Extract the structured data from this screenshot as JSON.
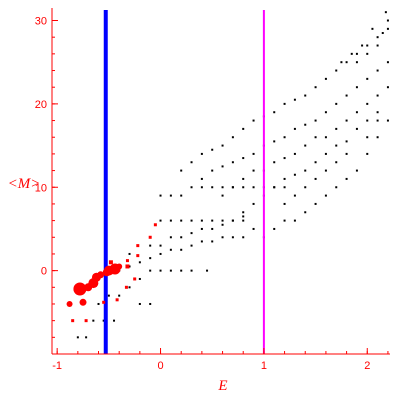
{
  "chart_data": {
    "type": "scatter",
    "title": "",
    "xlabel": "E",
    "ylabel": "<M>",
    "xlim": [
      -1.05,
      2.22
    ],
    "ylim": [
      -10,
      31.5
    ],
    "x_ticks": [
      -1,
      0,
      1,
      2
    ],
    "y_ticks": [
      0,
      10,
      20,
      30
    ],
    "grid": false,
    "colors": {
      "axis": "#ff0000",
      "black_points": "#000000",
      "red_points": "#ff0000",
      "blue_line": "#0000ff",
      "magenta_line": "#ff00ff"
    },
    "vertical_lines": [
      {
        "x": -0.53,
        "color": "#0000ff",
        "weight": "thick"
      },
      {
        "x": 1.0,
        "color": "#ff00ff",
        "weight": "thin"
      }
    ],
    "series": [
      {
        "color": "#000000",
        "marker": "dot",
        "points": [
          [
            -0.8,
            -8
          ],
          [
            -0.72,
            -8
          ],
          [
            -0.65,
            -6
          ],
          [
            -0.55,
            -6
          ],
          [
            -0.45,
            -6
          ],
          [
            -0.2,
            -4
          ],
          [
            -0.1,
            -4
          ],
          [
            -0.6,
            -4
          ],
          [
            -0.5,
            -3
          ],
          [
            -0.4,
            -3
          ],
          [
            -0.3,
            -2
          ],
          [
            -0.2,
            -1
          ],
          [
            -0.1,
            0
          ],
          [
            0.0,
            0
          ],
          [
            0.1,
            0
          ],
          [
            0.2,
            0
          ],
          [
            0.3,
            0
          ],
          [
            0.45,
            0
          ],
          [
            -0.4,
            0
          ],
          [
            -0.3,
            0.5
          ],
          [
            -0.2,
            1
          ],
          [
            -0.1,
            1.5
          ],
          [
            0.0,
            2
          ],
          [
            0.1,
            2.5
          ],
          [
            0.2,
            2.5
          ],
          [
            0.3,
            3
          ],
          [
            0.4,
            3.5
          ],
          [
            0.5,
            3.5
          ],
          [
            0.6,
            4
          ],
          [
            0.7,
            4
          ],
          [
            0.8,
            4
          ],
          [
            -0.3,
            2
          ],
          [
            -0.1,
            3
          ],
          [
            0.0,
            3
          ],
          [
            0.1,
            4
          ],
          [
            0.2,
            4
          ],
          [
            0.3,
            4.5
          ],
          [
            0.4,
            5
          ],
          [
            0.5,
            5
          ],
          [
            0.6,
            5.5
          ],
          [
            0.7,
            6
          ],
          [
            0.8,
            6.5
          ],
          [
            0.9,
            5
          ],
          [
            0.0,
            6
          ],
          [
            0.1,
            6
          ],
          [
            0.2,
            6
          ],
          [
            0.3,
            6
          ],
          [
            0.4,
            6
          ],
          [
            0.5,
            6
          ],
          [
            0.6,
            6
          ],
          [
            0.7,
            6
          ],
          [
            0.8,
            6
          ],
          [
            0.0,
            9
          ],
          [
            0.1,
            9
          ],
          [
            0.2,
            9
          ],
          [
            0.3,
            10
          ],
          [
            0.4,
            10
          ],
          [
            0.5,
            10
          ],
          [
            0.6,
            10
          ],
          [
            0.7,
            10
          ],
          [
            0.8,
            10
          ],
          [
            0.9,
            10
          ],
          [
            1.0,
            10
          ],
          [
            1.1,
            10
          ],
          [
            1.2,
            10
          ],
          [
            0.2,
            12
          ],
          [
            0.3,
            13
          ],
          [
            0.4,
            14
          ],
          [
            0.5,
            14.5
          ],
          [
            0.6,
            15
          ],
          [
            0.7,
            16
          ],
          [
            0.8,
            17
          ],
          [
            0.9,
            18
          ],
          [
            1.0,
            18.5
          ],
          [
            1.1,
            19
          ],
          [
            1.2,
            20
          ],
          [
            1.3,
            20.5
          ],
          [
            1.4,
            21
          ],
          [
            1.5,
            22
          ],
          [
            1.6,
            23
          ],
          [
            1.7,
            24
          ],
          [
            1.8,
            25
          ],
          [
            1.9,
            26
          ],
          [
            2.0,
            27
          ],
          [
            2.1,
            28
          ],
          [
            2.2,
            29
          ],
          [
            0.4,
            11
          ],
          [
            0.5,
            12
          ],
          [
            0.6,
            12.5
          ],
          [
            0.7,
            13
          ],
          [
            0.8,
            13.5
          ],
          [
            0.9,
            14
          ],
          [
            1.0,
            15
          ],
          [
            1.1,
            15.5
          ],
          [
            1.2,
            16
          ],
          [
            1.3,
            17
          ],
          [
            1.4,
            17.5
          ],
          [
            1.5,
            18
          ],
          [
            1.6,
            19
          ],
          [
            1.7,
            20
          ],
          [
            1.8,
            21
          ],
          [
            1.9,
            22
          ],
          [
            2.0,
            23
          ],
          [
            2.1,
            24
          ],
          [
            2.2,
            25
          ],
          [
            0.6,
            9
          ],
          [
            0.7,
            10
          ],
          [
            0.8,
            11
          ],
          [
            0.9,
            12
          ],
          [
            1.0,
            12
          ],
          [
            1.1,
            13
          ],
          [
            1.2,
            13.5
          ],
          [
            1.3,
            14
          ],
          [
            1.4,
            15
          ],
          [
            1.5,
            16
          ],
          [
            1.6,
            16
          ],
          [
            1.7,
            17
          ],
          [
            1.8,
            18
          ],
          [
            1.9,
            19
          ],
          [
            2.0,
            20
          ],
          [
            2.1,
            21
          ],
          [
            2.2,
            22
          ],
          [
            0.8,
            7
          ],
          [
            0.9,
            8
          ],
          [
            1.0,
            9
          ],
          [
            1.1,
            10
          ],
          [
            1.2,
            11
          ],
          [
            1.3,
            11.5
          ],
          [
            1.4,
            12
          ],
          [
            1.5,
            13
          ],
          [
            1.6,
            14
          ],
          [
            1.7,
            15
          ],
          [
            1.8,
            15.5
          ],
          [
            1.9,
            17
          ],
          [
            2.0,
            18
          ],
          [
            2.1,
            19
          ],
          [
            1.0,
            4
          ],
          [
            1.1,
            5
          ],
          [
            1.2,
            6
          ],
          [
            1.3,
            6
          ],
          [
            1.4,
            7
          ],
          [
            1.5,
            8
          ],
          [
            1.6,
            9
          ],
          [
            1.7,
            10
          ],
          [
            1.8,
            11
          ],
          [
            1.9,
            12
          ],
          [
            2.0,
            14
          ],
          [
            2.1,
            16
          ],
          [
            1.2,
            8
          ],
          [
            1.3,
            9
          ],
          [
            1.4,
            10
          ],
          [
            1.5,
            11
          ],
          [
            1.6,
            12
          ],
          [
            1.7,
            13
          ],
          [
            1.8,
            14
          ],
          [
            2.0,
            16
          ],
          [
            2.1,
            18
          ],
          [
            2.2,
            18
          ],
          [
            1.9,
            25
          ],
          [
            2.0,
            26
          ],
          [
            2.1,
            27
          ],
          [
            2.15,
            28.5
          ],
          [
            2.2,
            30
          ],
          [
            2.18,
            31
          ],
          [
            2.05,
            29
          ],
          [
            1.95,
            27
          ],
          [
            1.85,
            26
          ],
          [
            1.75,
            25
          ]
        ]
      },
      {
        "color": "#ff0000",
        "marker": "sized-dot",
        "points": [
          [
            -0.85,
            -6,
            2
          ],
          [
            -0.72,
            -6,
            2
          ],
          [
            -0.88,
            -4,
            4
          ],
          [
            -0.75,
            -3.8,
            5
          ],
          [
            -0.78,
            -2.2,
            11
          ],
          [
            -0.7,
            -2,
            6
          ],
          [
            -0.65,
            -1.5,
            8
          ],
          [
            -0.62,
            -0.8,
            7
          ],
          [
            -0.58,
            -0.5,
            5
          ],
          [
            -0.52,
            -0.2,
            6
          ],
          [
            -0.5,
            0,
            8
          ],
          [
            -0.44,
            0.2,
            9
          ],
          [
            -0.4,
            0.5,
            4
          ],
          [
            -0.48,
            1,
            3
          ],
          [
            -0.42,
            -3.5,
            2
          ],
          [
            -0.33,
            -2,
            2
          ],
          [
            -0.25,
            -1,
            2
          ],
          [
            -0.32,
            0.5,
            3
          ],
          [
            -0.32,
            1.2,
            2
          ],
          [
            -0.22,
            1.8,
            2
          ],
          [
            -0.22,
            3,
            2
          ],
          [
            -0.1,
            4,
            2
          ],
          [
            -0.05,
            5.5,
            2
          ],
          [
            -0.55,
            -3.8,
            2
          ]
        ]
      }
    ]
  }
}
